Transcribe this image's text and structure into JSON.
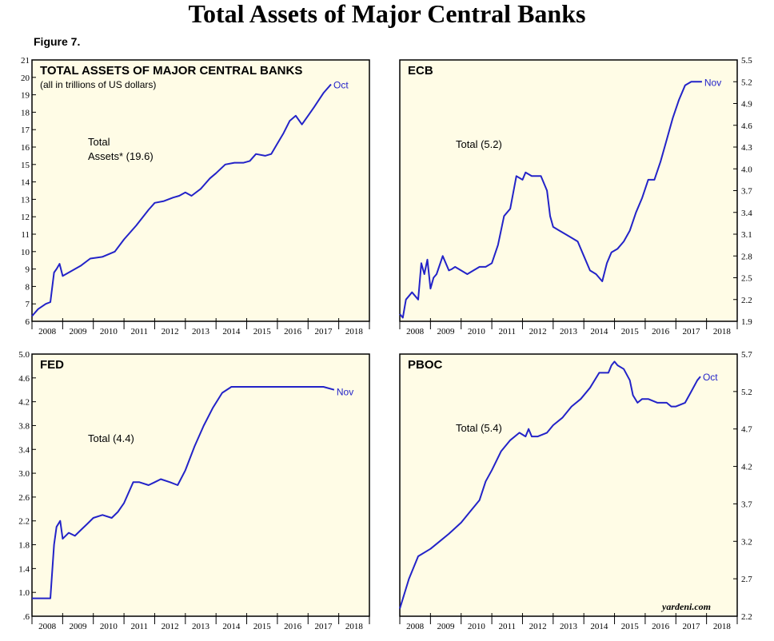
{
  "page": {
    "title": "Total Assets of Major Central Banks",
    "figure": "Figure 7.",
    "source": "yardeni.com"
  },
  "colors": {
    "panel_bg": "#fffce6",
    "line": "#2323c8",
    "frame": "#000000"
  },
  "chart_data": [
    {
      "type": "line",
      "title": "TOTAL ASSETS OF MAJOR CENTRAL BANKS",
      "subtitle": "(all in trillions of US dollars)",
      "annotation": [
        "Total",
        "Assets* (19.6)"
      ],
      "end_label": "Oct",
      "y_axis_side": "left",
      "ylim": [
        6,
        21
      ],
      "yticks": [
        "6",
        "7",
        "8",
        "9",
        "10",
        "11",
        "12",
        "13",
        "14",
        "15",
        "16",
        "17",
        "18",
        "19",
        "20",
        "21"
      ],
      "xlim": [
        2008,
        2019
      ],
      "xticks": [
        "2008",
        "2009",
        "2010",
        "2011",
        "2012",
        "2013",
        "2014",
        "2015",
        "2016",
        "2017",
        "2018"
      ],
      "series": [
        {
          "x": [
            2008.0,
            2008.2,
            2008.45,
            2008.6,
            2008.72,
            2008.8,
            2008.9,
            2009.0,
            2009.1,
            2009.3,
            2009.6,
            2009.9,
            2010.3,
            2010.7,
            2011.0,
            2011.4,
            2011.8,
            2012.0,
            2012.3,
            2012.6,
            2012.8,
            2013.0,
            2013.2,
            2013.5,
            2013.8,
            2014.0,
            2014.3,
            2014.6,
            2014.9,
            2015.1,
            2015.3,
            2015.6,
            2015.8,
            2016.0,
            2016.2,
            2016.4,
            2016.6,
            2016.8,
            2017.0,
            2017.2,
            2017.5,
            2017.75
          ],
          "y": [
            6.3,
            6.7,
            7.0,
            7.1,
            8.8,
            9.0,
            9.3,
            8.6,
            8.7,
            8.9,
            9.2,
            9.6,
            9.7,
            10.0,
            10.7,
            11.5,
            12.4,
            12.8,
            12.9,
            13.1,
            13.2,
            13.4,
            13.2,
            13.6,
            14.2,
            14.5,
            15.0,
            15.1,
            15.1,
            15.2,
            15.6,
            15.5,
            15.6,
            16.2,
            16.8,
            17.5,
            17.8,
            17.3,
            17.8,
            18.3,
            19.1,
            19.6
          ]
        }
      ]
    },
    {
      "type": "line",
      "title": "ECB",
      "annotation": [
        "Total (5.2)"
      ],
      "end_label": "Nov",
      "y_axis_side": "right",
      "ylim": [
        1.9,
        5.5
      ],
      "yticks": [
        "1.9",
        "2.2",
        "2.5",
        "2.8",
        "3.1",
        "3.4",
        "3.7",
        "4.0",
        "4.3",
        "4.6",
        "4.9",
        "5.2",
        "5.5"
      ],
      "xlim": [
        2008,
        2019
      ],
      "xticks": [
        "2008",
        "2009",
        "2010",
        "2011",
        "2012",
        "2013",
        "2014",
        "2015",
        "2016",
        "2017",
        "2018"
      ],
      "series": [
        {
          "x": [
            2008.0,
            2008.1,
            2008.2,
            2008.4,
            2008.6,
            2008.7,
            2008.8,
            2008.9,
            2009.0,
            2009.1,
            2009.2,
            2009.4,
            2009.6,
            2009.7,
            2009.8,
            2010.0,
            2010.2,
            2010.4,
            2010.6,
            2010.8,
            2011.0,
            2011.2,
            2011.4,
            2011.6,
            2011.8,
            2012.0,
            2012.1,
            2012.3,
            2012.5,
            2012.6,
            2012.8,
            2012.9,
            2013.0,
            2013.2,
            2013.4,
            2013.6,
            2013.8,
            2014.0,
            2014.2,
            2014.4,
            2014.6,
            2014.75,
            2014.9,
            2015.1,
            2015.3,
            2015.5,
            2015.7,
            2015.9,
            2016.1,
            2016.3,
            2016.5,
            2016.7,
            2016.9,
            2017.1,
            2017.3,
            2017.5,
            2017.7,
            2017.85
          ],
          "y": [
            2.0,
            1.95,
            2.2,
            2.3,
            2.2,
            2.7,
            2.55,
            2.75,
            2.35,
            2.5,
            2.55,
            2.8,
            2.6,
            2.62,
            2.65,
            2.6,
            2.55,
            2.6,
            2.65,
            2.65,
            2.7,
            2.95,
            3.35,
            3.45,
            3.9,
            3.85,
            3.95,
            3.9,
            3.9,
            3.9,
            3.7,
            3.35,
            3.2,
            3.15,
            3.1,
            3.05,
            3.0,
            2.8,
            2.6,
            2.55,
            2.45,
            2.7,
            2.85,
            2.9,
            3.0,
            3.15,
            3.4,
            3.6,
            3.85,
            3.85,
            4.1,
            4.4,
            4.7,
            4.95,
            5.15,
            5.2,
            5.2,
            5.2
          ]
        }
      ]
    },
    {
      "type": "line",
      "title": "FED",
      "annotation": [
        "Total (4.4)"
      ],
      "end_label": "Nov",
      "y_axis_side": "left",
      "ylim": [
        0.6,
        5.0
      ],
      "yticks": [
        ".6",
        "1.0",
        "1.4",
        "1.8",
        "2.2",
        "2.6",
        "3.0",
        "3.4",
        "3.8",
        "4.2",
        "4.6",
        "5.0"
      ],
      "xlim": [
        2008,
        2019
      ],
      "xticks": [
        "2008",
        "2009",
        "2010",
        "2011",
        "2012",
        "2013",
        "2014",
        "2015",
        "2016",
        "2017",
        "2018"
      ],
      "series": [
        {
          "x": [
            2008.0,
            2008.35,
            2008.6,
            2008.72,
            2008.8,
            2008.92,
            2009.0,
            2009.2,
            2009.4,
            2009.6,
            2009.8,
            2010.0,
            2010.3,
            2010.6,
            2010.8,
            2011.0,
            2011.3,
            2011.5,
            2011.8,
            2012.0,
            2012.2,
            2012.5,
            2012.75,
            2013.0,
            2013.3,
            2013.6,
            2013.9,
            2014.2,
            2014.5,
            2014.8,
            2015.0,
            2015.3,
            2015.6,
            2016.0,
            2016.4,
            2016.8,
            2017.2,
            2017.5,
            2017.85
          ],
          "y": [
            0.9,
            0.9,
            0.9,
            1.8,
            2.1,
            2.2,
            1.9,
            2.0,
            1.95,
            2.05,
            2.15,
            2.25,
            2.3,
            2.25,
            2.35,
            2.5,
            2.85,
            2.85,
            2.8,
            2.85,
            2.9,
            2.85,
            2.8,
            3.05,
            3.45,
            3.8,
            4.1,
            4.35,
            4.45,
            4.45,
            4.45,
            4.45,
            4.45,
            4.45,
            4.45,
            4.45,
            4.45,
            4.45,
            4.4
          ]
        }
      ]
    },
    {
      "type": "line",
      "title": "PBOC",
      "annotation": [
        "Total (5.4)"
      ],
      "end_label": "Oct",
      "y_axis_side": "right",
      "ylim": [
        2.2,
        5.7
      ],
      "yticks": [
        "2.2",
        "2.7",
        "3.2",
        "3.7",
        "4.2",
        "4.7",
        "5.2",
        "5.7"
      ],
      "xlim": [
        2008,
        2019
      ],
      "xticks": [
        "2008",
        "2009",
        "2010",
        "2011",
        "2012",
        "2013",
        "2014",
        "2015",
        "2016",
        "2017",
        "2018"
      ],
      "series": [
        {
          "x": [
            2008.0,
            2008.3,
            2008.6,
            2009.0,
            2009.3,
            2009.6,
            2010.0,
            2010.3,
            2010.6,
            2010.8,
            2011.0,
            2011.3,
            2011.6,
            2011.9,
            2012.1,
            2012.2,
            2012.3,
            2012.5,
            2012.8,
            2013.0,
            2013.3,
            2013.6,
            2013.9,
            2014.2,
            2014.5,
            2014.8,
            2014.9,
            2015.0,
            2015.1,
            2015.3,
            2015.5,
            2015.6,
            2015.75,
            2015.9,
            2016.1,
            2016.4,
            2016.7,
            2016.85,
            2017.0,
            2017.3,
            2017.5,
            2017.7,
            2017.8
          ],
          "y": [
            2.3,
            2.7,
            3.0,
            3.1,
            3.2,
            3.3,
            3.45,
            3.6,
            3.75,
            4.0,
            4.15,
            4.4,
            4.55,
            4.65,
            4.6,
            4.7,
            4.6,
            4.6,
            4.65,
            4.75,
            4.85,
            5.0,
            5.1,
            5.25,
            5.45,
            5.45,
            5.55,
            5.6,
            5.55,
            5.5,
            5.35,
            5.15,
            5.05,
            5.1,
            5.1,
            5.05,
            5.05,
            5.0,
            5.0,
            5.05,
            5.2,
            5.35,
            5.4
          ]
        }
      ]
    }
  ]
}
